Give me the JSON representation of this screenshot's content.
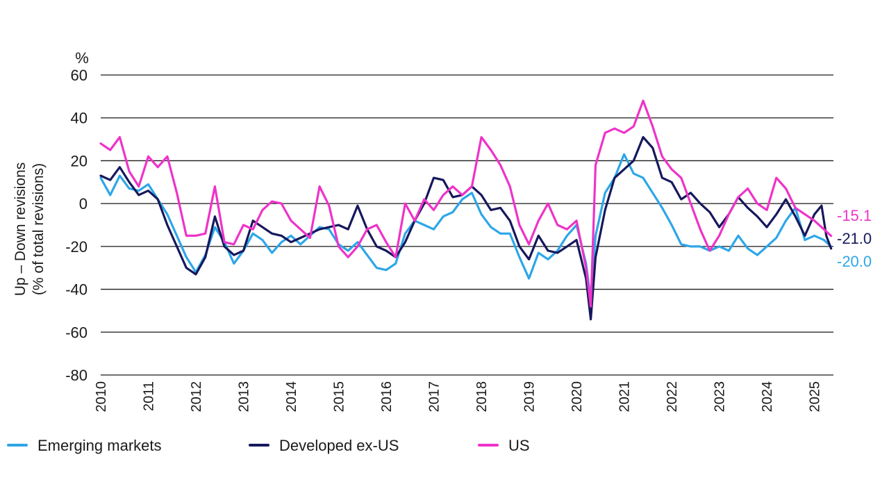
{
  "chart_data": {
    "type": "line",
    "unit_label": "%",
    "ylabel_line1": "Up – Down revisions",
    "ylabel_line2": "(% of total revisions)",
    "ylim": [
      -80,
      60
    ],
    "yticks": [
      60,
      40,
      20,
      0,
      -20,
      -40,
      -60,
      -80
    ],
    "ytick_labels": [
      "60",
      "40",
      "20",
      "0",
      "-20",
      "-40",
      "-60",
      "-80"
    ],
    "xlim": [
      2010,
      2025.4
    ],
    "xticks": [
      2010,
      2011,
      2012,
      2013,
      2014,
      2015,
      2016,
      2017,
      2018,
      2019,
      2020,
      2021,
      2022,
      2023,
      2024,
      2025
    ],
    "xtick_labels": [
      "2010",
      "2011",
      "2012",
      "2013",
      "2014",
      "2015",
      "2016",
      "2017",
      "2018",
      "2019",
      "2020",
      "2021",
      "2022",
      "2023",
      "2024",
      "2025"
    ],
    "grid": "horizontal",
    "legend_position": "bottom",
    "series": [
      {
        "name": "Emerging markets",
        "color": "#2da6e8",
        "end_label": "-20.0",
        "points": [
          [
            2010.0,
            12
          ],
          [
            2010.2,
            4
          ],
          [
            2010.4,
            13
          ],
          [
            2010.6,
            7
          ],
          [
            2010.8,
            6
          ],
          [
            2011.0,
            9
          ],
          [
            2011.2,
            2
          ],
          [
            2011.4,
            -5
          ],
          [
            2011.6,
            -15
          ],
          [
            2011.8,
            -25
          ],
          [
            2012.0,
            -32
          ],
          [
            2012.2,
            -24
          ],
          [
            2012.4,
            -11
          ],
          [
            2012.6,
            -18
          ],
          [
            2012.8,
            -28
          ],
          [
            2013.0,
            -22
          ],
          [
            2013.2,
            -14
          ],
          [
            2013.4,
            -17
          ],
          [
            2013.6,
            -23
          ],
          [
            2013.8,
            -18
          ],
          [
            2014.0,
            -15
          ],
          [
            2014.2,
            -19
          ],
          [
            2014.4,
            -15
          ],
          [
            2014.6,
            -11
          ],
          [
            2014.8,
            -12
          ],
          [
            2015.0,
            -19
          ],
          [
            2015.2,
            -22
          ],
          [
            2015.4,
            -18
          ],
          [
            2015.6,
            -24
          ],
          [
            2015.8,
            -30
          ],
          [
            2016.0,
            -31
          ],
          [
            2016.2,
            -28
          ],
          [
            2016.4,
            -14
          ],
          [
            2016.6,
            -8
          ],
          [
            2016.8,
            -10
          ],
          [
            2017.0,
            -12
          ],
          [
            2017.2,
            -6
          ],
          [
            2017.4,
            -4
          ],
          [
            2017.6,
            2
          ],
          [
            2017.8,
            5
          ],
          [
            2018.0,
            -5
          ],
          [
            2018.2,
            -11
          ],
          [
            2018.4,
            -14
          ],
          [
            2018.6,
            -14
          ],
          [
            2018.8,
            -25
          ],
          [
            2019.0,
            -35
          ],
          [
            2019.2,
            -23
          ],
          [
            2019.4,
            -26
          ],
          [
            2019.6,
            -22
          ],
          [
            2019.8,
            -15
          ],
          [
            2020.0,
            -10
          ],
          [
            2020.2,
            -28
          ],
          [
            2020.3,
            -45
          ],
          [
            2020.4,
            -15
          ],
          [
            2020.6,
            5
          ],
          [
            2020.8,
            12
          ],
          [
            2021.0,
            23
          ],
          [
            2021.2,
            14
          ],
          [
            2021.4,
            12
          ],
          [
            2021.6,
            5
          ],
          [
            2021.8,
            -2
          ],
          [
            2022.0,
            -10
          ],
          [
            2022.2,
            -19
          ],
          [
            2022.4,
            -20
          ],
          [
            2022.6,
            -20
          ],
          [
            2022.8,
            -22
          ],
          [
            2023.0,
            -20
          ],
          [
            2023.2,
            -22
          ],
          [
            2023.4,
            -15
          ],
          [
            2023.6,
            -21
          ],
          [
            2023.8,
            -24
          ],
          [
            2024.0,
            -20
          ],
          [
            2024.2,
            -16
          ],
          [
            2024.4,
            -8
          ],
          [
            2024.6,
            -2
          ],
          [
            2024.8,
            -17
          ],
          [
            2025.0,
            -15
          ],
          [
            2025.2,
            -17
          ],
          [
            2025.35,
            -20
          ]
        ]
      },
      {
        "name": "Developed ex-US",
        "color": "#16185c",
        "end_label": "-21.0",
        "points": [
          [
            2010.0,
            13
          ],
          [
            2010.2,
            11
          ],
          [
            2010.4,
            17
          ],
          [
            2010.6,
            10
          ],
          [
            2010.8,
            4
          ],
          [
            2011.0,
            6
          ],
          [
            2011.2,
            2
          ],
          [
            2011.4,
            -10
          ],
          [
            2011.6,
            -20
          ],
          [
            2011.8,
            -30
          ],
          [
            2012.0,
            -33
          ],
          [
            2012.2,
            -25
          ],
          [
            2012.4,
            -6
          ],
          [
            2012.6,
            -20
          ],
          [
            2012.8,
            -24
          ],
          [
            2013.0,
            -22
          ],
          [
            2013.2,
            -8
          ],
          [
            2013.4,
            -11
          ],
          [
            2013.6,
            -14
          ],
          [
            2013.8,
            -15
          ],
          [
            2014.0,
            -18
          ],
          [
            2014.2,
            -16
          ],
          [
            2014.4,
            -14
          ],
          [
            2014.6,
            -12
          ],
          [
            2014.8,
            -11
          ],
          [
            2015.0,
            -10
          ],
          [
            2015.2,
            -12
          ],
          [
            2015.4,
            -1
          ],
          [
            2015.6,
            -12
          ],
          [
            2015.8,
            -20
          ],
          [
            2016.0,
            -22
          ],
          [
            2016.2,
            -25
          ],
          [
            2016.4,
            -18
          ],
          [
            2016.6,
            -8
          ],
          [
            2016.8,
            0
          ],
          [
            2017.0,
            12
          ],
          [
            2017.2,
            11
          ],
          [
            2017.4,
            3
          ],
          [
            2017.6,
            4
          ],
          [
            2017.8,
            8
          ],
          [
            2018.0,
            4
          ],
          [
            2018.2,
            -3
          ],
          [
            2018.4,
            -2
          ],
          [
            2018.6,
            -8
          ],
          [
            2018.8,
            -20
          ],
          [
            2019.0,
            -26
          ],
          [
            2019.2,
            -15
          ],
          [
            2019.4,
            -22
          ],
          [
            2019.6,
            -23
          ],
          [
            2019.8,
            -20
          ],
          [
            2020.0,
            -17
          ],
          [
            2020.2,
            -35
          ],
          [
            2020.3,
            -54
          ],
          [
            2020.4,
            -25
          ],
          [
            2020.6,
            -3
          ],
          [
            2020.8,
            12
          ],
          [
            2021.0,
            16
          ],
          [
            2021.2,
            20
          ],
          [
            2021.4,
            31
          ],
          [
            2021.6,
            26
          ],
          [
            2021.8,
            12
          ],
          [
            2022.0,
            10
          ],
          [
            2022.2,
            2
          ],
          [
            2022.4,
            5
          ],
          [
            2022.6,
            0
          ],
          [
            2022.8,
            -4
          ],
          [
            2023.0,
            -11
          ],
          [
            2023.2,
            -5
          ],
          [
            2023.4,
            3
          ],
          [
            2023.6,
            -2
          ],
          [
            2023.8,
            -6
          ],
          [
            2024.0,
            -11
          ],
          [
            2024.2,
            -5
          ],
          [
            2024.4,
            2
          ],
          [
            2024.6,
            -6
          ],
          [
            2024.8,
            -15
          ],
          [
            2025.0,
            -5
          ],
          [
            2025.15,
            -1
          ],
          [
            2025.25,
            -15
          ],
          [
            2025.35,
            -21
          ]
        ]
      },
      {
        "name": "US",
        "color": "#ee33c8",
        "end_label": "-15.1",
        "points": [
          [
            2010.0,
            28
          ],
          [
            2010.2,
            25
          ],
          [
            2010.4,
            31
          ],
          [
            2010.6,
            15
          ],
          [
            2010.8,
            8
          ],
          [
            2011.0,
            22
          ],
          [
            2011.2,
            17
          ],
          [
            2011.4,
            22
          ],
          [
            2011.6,
            5
          ],
          [
            2011.8,
            -15
          ],
          [
            2012.0,
            -15
          ],
          [
            2012.2,
            -14
          ],
          [
            2012.4,
            8
          ],
          [
            2012.6,
            -18
          ],
          [
            2012.8,
            -19
          ],
          [
            2013.0,
            -10
          ],
          [
            2013.2,
            -12
          ],
          [
            2013.4,
            -3
          ],
          [
            2013.6,
            1
          ],
          [
            2013.8,
            0
          ],
          [
            2014.0,
            -8
          ],
          [
            2014.2,
            -12
          ],
          [
            2014.4,
            -16
          ],
          [
            2014.6,
            8
          ],
          [
            2014.8,
            -1
          ],
          [
            2015.0,
            -20
          ],
          [
            2015.2,
            -25
          ],
          [
            2015.4,
            -20
          ],
          [
            2015.6,
            -12
          ],
          [
            2015.8,
            -10
          ],
          [
            2016.0,
            -18
          ],
          [
            2016.2,
            -25
          ],
          [
            2016.4,
            0
          ],
          [
            2016.6,
            -8
          ],
          [
            2016.8,
            2
          ],
          [
            2017.0,
            -3
          ],
          [
            2017.2,
            4
          ],
          [
            2017.4,
            8
          ],
          [
            2017.6,
            4
          ],
          [
            2017.8,
            8
          ],
          [
            2018.0,
            31
          ],
          [
            2018.2,
            25
          ],
          [
            2018.4,
            18
          ],
          [
            2018.6,
            8
          ],
          [
            2018.8,
            -10
          ],
          [
            2019.0,
            -19
          ],
          [
            2019.2,
            -8
          ],
          [
            2019.4,
            0
          ],
          [
            2019.6,
            -10
          ],
          [
            2019.8,
            -12
          ],
          [
            2020.0,
            -8
          ],
          [
            2020.2,
            -30
          ],
          [
            2020.3,
            -48
          ],
          [
            2020.4,
            18
          ],
          [
            2020.6,
            33
          ],
          [
            2020.8,
            35
          ],
          [
            2021.0,
            33
          ],
          [
            2021.2,
            36
          ],
          [
            2021.4,
            48
          ],
          [
            2021.6,
            36
          ],
          [
            2021.8,
            22
          ],
          [
            2022.0,
            16
          ],
          [
            2022.2,
            12
          ],
          [
            2022.4,
            0
          ],
          [
            2022.6,
            -12
          ],
          [
            2022.8,
            -22
          ],
          [
            2023.0,
            -15
          ],
          [
            2023.2,
            -5
          ],
          [
            2023.4,
            3
          ],
          [
            2023.6,
            7
          ],
          [
            2023.8,
            0
          ],
          [
            2024.0,
            -3
          ],
          [
            2024.2,
            12
          ],
          [
            2024.4,
            7
          ],
          [
            2024.6,
            -2
          ],
          [
            2024.8,
            -5
          ],
          [
            2025.0,
            -8
          ],
          [
            2025.2,
            -12
          ],
          [
            2025.35,
            -15.1
          ]
        ]
      }
    ]
  }
}
